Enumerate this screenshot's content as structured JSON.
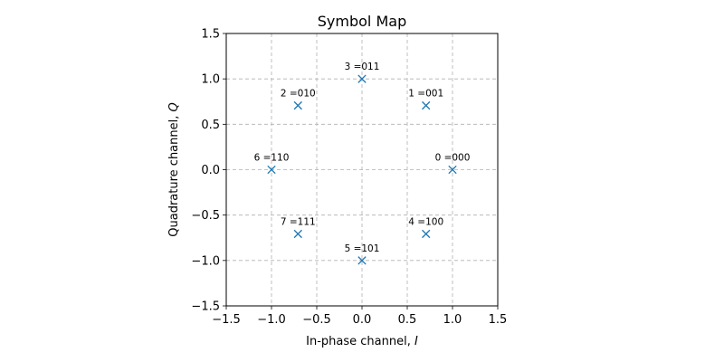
{
  "chart_data": {
    "type": "scatter",
    "title": "Symbol Map",
    "xlabel": "In-phase channel, ",
    "xlabel_var": "I",
    "ylabel": "Quadrature channel, ",
    "ylabel_var": "Q",
    "xlim": [
      -1.5,
      1.5
    ],
    "ylim": [
      -1.5,
      1.5
    ],
    "xticks": [
      -1.5,
      -1.0,
      -0.5,
      0.0,
      0.5,
      1.0,
      1.5
    ],
    "yticks": [
      -1.5,
      -1.0,
      -0.5,
      0.0,
      0.5,
      1.0,
      1.5
    ],
    "xtick_labels": [
      "−1.5",
      "−1.0",
      "−0.5",
      "0.0",
      "0.5",
      "1.0",
      "1.5"
    ],
    "ytick_labels": [
      "−1.5",
      "−1.0",
      "−0.5",
      "0.0",
      "0.5",
      "1.0",
      "1.5"
    ],
    "grid": true,
    "marker": "x",
    "marker_color": "#1f77b4",
    "points": [
      {
        "x": 1.0,
        "y": 0.0,
        "label": "0 =000"
      },
      {
        "x": 0.707,
        "y": 0.707,
        "label": "1 =001"
      },
      {
        "x": -0.707,
        "y": 0.707,
        "label": "2 =010"
      },
      {
        "x": 0.0,
        "y": 1.0,
        "label": "3 =011"
      },
      {
        "x": 0.707,
        "y": -0.707,
        "label": "4 =100"
      },
      {
        "x": 0.0,
        "y": -1.0,
        "label": "5 =101"
      },
      {
        "x": -1.0,
        "y": 0.0,
        "label": "6 =110"
      },
      {
        "x": -0.707,
        "y": -0.707,
        "label": "7 =111"
      }
    ]
  }
}
